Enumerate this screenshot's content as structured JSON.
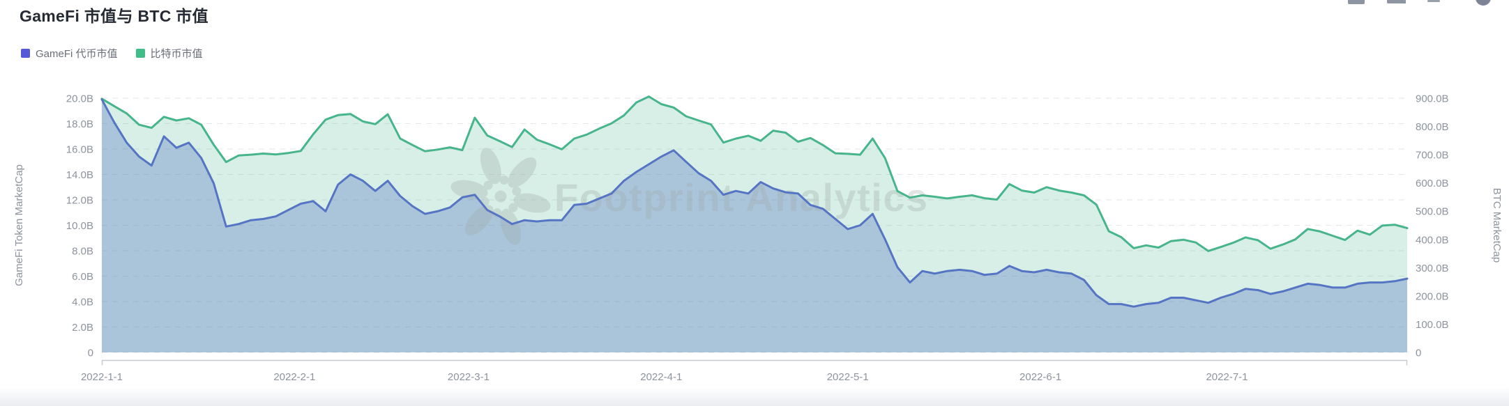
{
  "header": {
    "title": "GameFi 市值与 BTC 市值"
  },
  "legend": {
    "items": [
      {
        "label": "GameFi 代币市值",
        "color": "#5659d6"
      },
      {
        "label": "比特币市值",
        "color": "#41bd8a"
      }
    ]
  },
  "watermark": {
    "text": "Footprint Analytics"
  },
  "toolbar": {
    "icons": [
      "panel-icon",
      "screenshot-icon",
      "minus-icon",
      "profile-icon"
    ]
  },
  "chart_data": {
    "type": "area",
    "title": "GameFi 市值与 BTC 市值",
    "grid": true,
    "legend_position": "top-left",
    "x_unit": "days since 2022-01-01",
    "x_days": [
      0,
      2,
      4,
      6,
      8,
      10,
      12,
      14,
      16,
      18,
      20,
      22,
      24,
      26,
      28,
      30,
      32,
      34,
      36,
      38,
      40,
      42,
      44,
      46,
      48,
      50,
      52,
      54,
      56,
      58,
      60,
      62,
      64,
      66,
      68,
      70,
      72,
      74,
      76,
      78,
      80,
      82,
      84,
      86,
      88,
      90,
      92,
      94,
      96,
      98,
      100,
      102,
      104,
      106,
      108,
      110,
      112,
      114,
      116,
      118,
      120,
      122,
      124,
      126,
      128,
      130,
      132,
      134,
      136,
      138,
      140,
      142,
      144,
      146,
      148,
      150,
      152,
      154,
      156,
      158,
      160,
      162,
      164,
      166,
      168,
      170,
      172,
      174,
      176,
      178,
      180,
      182,
      184,
      186,
      188,
      190,
      192,
      194,
      196,
      198,
      200,
      202,
      204,
      206,
      208,
      210
    ],
    "x_ticks": [
      {
        "label": "2022-1-1",
        "day": 0
      },
      {
        "label": "2022-2-1",
        "day": 31
      },
      {
        "label": "2022-3-1",
        "day": 59
      },
      {
        "label": "2022-4-1",
        "day": 90
      },
      {
        "label": "2022-5-1",
        "day": 120
      },
      {
        "label": "2022-6-1",
        "day": 151
      },
      {
        "label": "2022-7-1",
        "day": 181
      }
    ],
    "left_axis": {
      "name": "GameFi Token MarketCap",
      "min": 0,
      "max": 20,
      "unit": "billion USD",
      "ticks": [
        {
          "label": "20.0B",
          "value": 20
        },
        {
          "label": "18.0B",
          "value": 18
        },
        {
          "label": "16.0B",
          "value": 16
        },
        {
          "label": "14.0B",
          "value": 14
        },
        {
          "label": "12.0B",
          "value": 12
        },
        {
          "label": "10.0B",
          "value": 10
        },
        {
          "label": "8.0B",
          "value": 8
        },
        {
          "label": "6.0B",
          "value": 6
        },
        {
          "label": "4.0B",
          "value": 4
        },
        {
          "label": "2.0B",
          "value": 2
        },
        {
          "label": "0",
          "value": 0
        }
      ]
    },
    "right_axis": {
      "name": "BTC MarketCap",
      "min": 0,
      "max": 900,
      "unit": "billion USD",
      "ticks": [
        {
          "label": "900.0B",
          "value": 900
        },
        {
          "label": "800.0B",
          "value": 800
        },
        {
          "label": "700.0B",
          "value": 700
        },
        {
          "label": "600.0B",
          "value": 600
        },
        {
          "label": "500.0B",
          "value": 500
        },
        {
          "label": "400.0B",
          "value": 400
        },
        {
          "label": "300.0B",
          "value": 300
        },
        {
          "label": "200.0B",
          "value": 200
        },
        {
          "label": "100.0B",
          "value": 100
        },
        {
          "label": "0",
          "value": 0
        }
      ]
    },
    "series": [
      {
        "name": "比特币市值",
        "axis": "right",
        "line_color": "#47b58c",
        "fill_color": "rgba(71,181,140,0.22)",
        "values": [
          898,
          872,
          846,
          806,
          795,
          834,
          821,
          829,
          806,
          735,
          674,
          697,
          700,
          704,
          701,
          706,
          713,
          772,
          824,
          840,
          844,
          818,
          808,
          843,
          757,
          734,
          712,
          718,
          726,
          716,
          831,
          768,
          748,
          727,
          789,
          753,
          737,
          719,
          757,
          771,
          792,
          811,
          839,
          885,
          906,
          879,
          867,
          836,
          821,
          807,
          743,
          757,
          767,
          749,
          785,
          778,
          746,
          759,
          734,
          705,
          703,
          700,
          757,
          688,
          571,
          548,
          556,
          551,
          545,
          551,
          556,
          546,
          541,
          596,
          573,
          566,
          585,
          573,
          566,
          556,
          523,
          429,
          408,
          369,
          379,
          371,
          394,
          399,
          389,
          359,
          373,
          388,
          407,
          397,
          367,
          382,
          400,
          437,
          428,
          413,
          398,
          431,
          417,
          449,
          452,
          440
        ]
      },
      {
        "name": "GameFi 代币市值",
        "axis": "left",
        "line_color": "#5575c4",
        "fill_color": "rgba(85,117,196,0.35)",
        "values": [
          19.9,
          18.1,
          16.5,
          15.4,
          14.7,
          17.0,
          16.1,
          16.5,
          15.3,
          13.3,
          9.9,
          10.1,
          10.4,
          10.5,
          10.7,
          11.2,
          11.7,
          11.9,
          11.1,
          13.2,
          14.0,
          13.5,
          12.7,
          13.5,
          12.3,
          11.5,
          10.9,
          11.1,
          11.4,
          12.2,
          12.4,
          11.2,
          10.7,
          10.1,
          10.4,
          10.3,
          10.4,
          10.4,
          11.6,
          11.7,
          12.1,
          12.5,
          13.5,
          14.2,
          14.8,
          15.4,
          15.9,
          15.0,
          14.1,
          13.5,
          12.4,
          12.7,
          12.5,
          13.4,
          12.9,
          12.6,
          12.5,
          11.6,
          11.3,
          10.5,
          9.7,
          10.0,
          10.9,
          8.9,
          6.7,
          5.5,
          6.4,
          6.2,
          6.4,
          6.5,
          6.4,
          6.1,
          6.2,
          6.8,
          6.4,
          6.3,
          6.5,
          6.3,
          6.2,
          5.7,
          4.5,
          3.8,
          3.8,
          3.6,
          3.8,
          3.9,
          4.3,
          4.3,
          4.1,
          3.9,
          4.3,
          4.6,
          5.0,
          4.9,
          4.6,
          4.8,
          5.1,
          5.4,
          5.3,
          5.1,
          5.1,
          5.4,
          5.5,
          5.5,
          5.6,
          5.8
        ]
      }
    ]
  },
  "colors": {
    "grid_line": "#e4e6e9",
    "axis_line": "#c6cad0",
    "tick_text": "#8d939c",
    "watermark": "#a0aeaa",
    "bottom_strip": "#eaecf0"
  }
}
